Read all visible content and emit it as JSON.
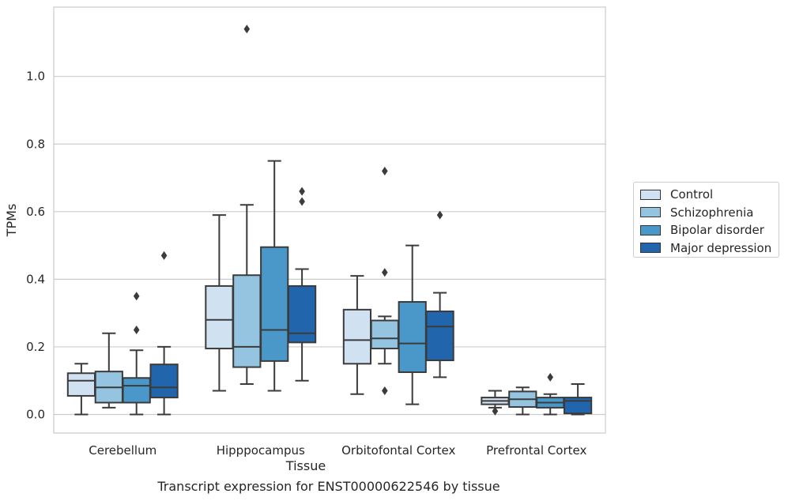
{
  "caption": "Transcript expression for ENST00000622546 by tissue",
  "chart_data": {
    "type": "box",
    "title": "",
    "xlabel": "Tissue",
    "ylabel": "TPMs",
    "ylim": [
      -0.055,
      1.205
    ],
    "yticks": [
      0.0,
      0.2,
      0.4,
      0.6,
      0.8,
      1.0
    ],
    "ytick_labels": [
      "0.0",
      "0.2",
      "0.4",
      "0.6",
      "0.8",
      "1.0"
    ],
    "grid": "horizontal",
    "legend_position": "right",
    "categories": [
      "Cerebellum",
      "Hipppocampus",
      "Orbitofontal Cortex",
      "Prefrontal Cortex"
    ],
    "series": [
      {
        "name": "Control",
        "color": "#d0e1f2",
        "boxes": [
          {
            "whisker_low": 0.0,
            "q1": 0.055,
            "median": 0.1,
            "q3": 0.122,
            "whisker_high": 0.15,
            "outliers": []
          },
          {
            "whisker_low": 0.07,
            "q1": 0.195,
            "median": 0.28,
            "q3": 0.38,
            "whisker_high": 0.59,
            "outliers": []
          },
          {
            "whisker_low": 0.06,
            "q1": 0.15,
            "median": 0.22,
            "q3": 0.31,
            "whisker_high": 0.41,
            "outliers": []
          },
          {
            "whisker_low": 0.02,
            "q1": 0.03,
            "median": 0.04,
            "q3": 0.05,
            "whisker_high": 0.07,
            "outliers": [
              0.01
            ]
          }
        ]
      },
      {
        "name": "Schizophrenia",
        "color": "#94c4df",
        "boxes": [
          {
            "whisker_low": 0.02,
            "q1": 0.035,
            "median": 0.08,
            "q3": 0.127,
            "whisker_high": 0.24,
            "outliers": []
          },
          {
            "whisker_low": 0.09,
            "q1": 0.14,
            "median": 0.2,
            "q3": 0.412,
            "whisker_high": 0.62,
            "outliers": [
              1.14
            ]
          },
          {
            "whisker_low": 0.15,
            "q1": 0.195,
            "median": 0.225,
            "q3": 0.278,
            "whisker_high": 0.29,
            "outliers": [
              0.72,
              0.42,
              0.07
            ]
          },
          {
            "whisker_low": 0.0,
            "q1": 0.022,
            "median": 0.045,
            "q3": 0.068,
            "whisker_high": 0.08,
            "outliers": []
          }
        ]
      },
      {
        "name": "Bipolar disorder",
        "color": "#4a98c9",
        "boxes": [
          {
            "whisker_low": 0.0,
            "q1": 0.035,
            "median": 0.085,
            "q3": 0.108,
            "whisker_high": 0.19,
            "outliers": [
              0.35,
              0.25
            ]
          },
          {
            "whisker_low": 0.07,
            "q1": 0.158,
            "median": 0.25,
            "q3": 0.495,
            "whisker_high": 0.75,
            "outliers": []
          },
          {
            "whisker_low": 0.03,
            "q1": 0.125,
            "median": 0.21,
            "q3": 0.333,
            "whisker_high": 0.5,
            "outliers": []
          },
          {
            "whisker_low": 0.0,
            "q1": 0.02,
            "median": 0.035,
            "q3": 0.05,
            "whisker_high": 0.06,
            "outliers": [
              0.11
            ]
          }
        ]
      },
      {
        "name": "Major depression",
        "color": "#2166ac",
        "boxes": [
          {
            "whisker_low": 0.0,
            "q1": 0.05,
            "median": 0.08,
            "q3": 0.148,
            "whisker_high": 0.2,
            "outliers": [
              0.47
            ]
          },
          {
            "whisker_low": 0.1,
            "q1": 0.213,
            "median": 0.24,
            "q3": 0.38,
            "whisker_high": 0.43,
            "outliers": [
              0.66,
              0.63
            ]
          },
          {
            "whisker_low": 0.11,
            "q1": 0.16,
            "median": 0.26,
            "q3": 0.305,
            "whisker_high": 0.36,
            "outliers": [
              0.59
            ]
          },
          {
            "whisker_low": 0.0,
            "q1": 0.003,
            "median": 0.04,
            "q3": 0.05,
            "whisker_high": 0.09,
            "outliers": []
          }
        ]
      }
    ]
  }
}
